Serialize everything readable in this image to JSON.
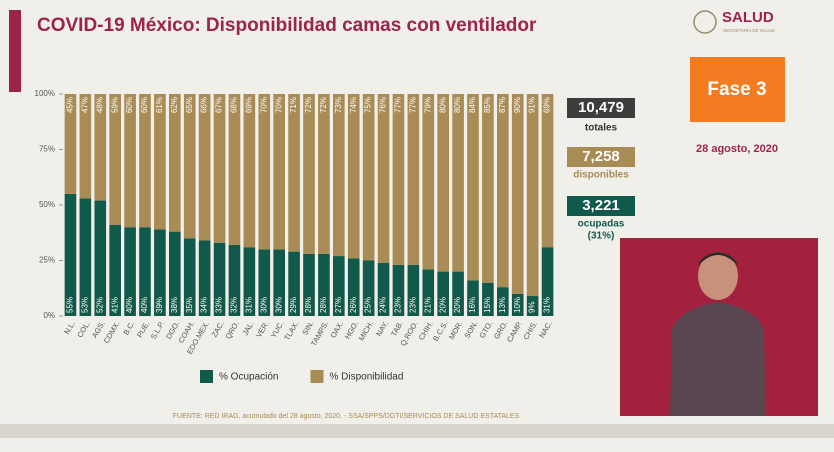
{
  "header": {
    "title": "COVID-19 México: Disponibilidad camas con ventilador",
    "logo": "SALUD",
    "logo_subtitle": "SECRETARÍA DE SALUD"
  },
  "chart_data": {
    "type": "bar",
    "stacked": true,
    "categories": [
      "N.L.",
      "COL.",
      "AGS.",
      "CDMX.",
      "B.C.",
      "PUE.",
      "S.L.P.",
      "DGO.",
      "COAH.",
      "EDO.MEX.",
      "ZAC.",
      "QRO.",
      "JAL.",
      "VER.",
      "YUC.",
      "TLAX.",
      "SIN.",
      "TAMPS.",
      "OAX.",
      "HGO.",
      "MICH.",
      "NAY.",
      "TAB.",
      "Q.ROO.",
      "CHIH.",
      "B.C.S.",
      "MOR.",
      "SON.",
      "GTO.",
      "GRO.",
      "CAMP.",
      "CHIS.",
      "NAC."
    ],
    "series": [
      {
        "name": "% Ocupación",
        "color": "#11594a",
        "values": [
          55,
          53,
          52,
          41,
          40,
          40,
          39,
          38,
          35,
          34,
          33,
          32,
          31,
          30,
          30,
          29,
          28,
          28,
          27,
          26,
          25,
          24,
          23,
          23,
          21,
          20,
          20,
          16,
          15,
          13,
          10,
          9,
          31
        ],
        "value_labels": [
          "55%",
          "53%",
          "52%",
          "41%",
          "40%",
          "40%",
          "39%",
          "38%",
          "35%",
          "34%",
          "33%",
          "32%",
          "31%",
          "30%",
          "30%",
          "29%",
          "28%",
          "28%",
          "27%",
          "26%",
          "25%",
          "24%",
          "23%",
          "23%",
          "21%",
          "20%",
          "20%",
          "16%",
          "15%",
          "13%",
          "10%",
          "9%",
          "31%"
        ]
      },
      {
        "name": "% Disponibilidad",
        "color": "#a88b55",
        "values": [
          45,
          47,
          48,
          59,
          60,
          60,
          61,
          62,
          65,
          66,
          67,
          68,
          69,
          70,
          70,
          71,
          72,
          72,
          73,
          74,
          75,
          76,
          77,
          77,
          79,
          80,
          80,
          84,
          85,
          87,
          90,
          91,
          69
        ],
        "value_labels": [
          "45%",
          "47%",
          "48%",
          "59%",
          "60%",
          "60%",
          "61%",
          "62%",
          "65%",
          "66%",
          "67%",
          "68%",
          "69%",
          "70%",
          "70%",
          "71%",
          "72%",
          "72%",
          "73%",
          "74%",
          "75%",
          "76%",
          "77%",
          "77%",
          "79%",
          "80%",
          "80%",
          "84%",
          "85%",
          "87%",
          "90%",
          "91%",
          "69%"
        ]
      }
    ],
    "ylim": [
      0,
      100
    ],
    "yticks": [
      {
        "value": 0,
        "label": "0%"
      },
      {
        "value": 25,
        "label": "25%"
      },
      {
        "value": 50,
        "label": "50%"
      },
      {
        "value": 75,
        "label": "75%"
      },
      {
        "value": 100,
        "label": "100%"
      }
    ],
    "legend": "bottom"
  },
  "summary": {
    "total": "10,479",
    "total_label": "totales",
    "available": "7,258",
    "available_label": "disponibles",
    "occupied": "3,221",
    "occupied_label": "ocupadas",
    "occupied_pct": "(31%)"
  },
  "phase": "Fase 3",
  "date": "28 agosto, 2020",
  "source": "FUENTE: RED IRAG, acumulado del 28 agosto, 2020. - SSA/SPPS/DGTI/SERVICIOS DE SALUD ESTATALES"
}
